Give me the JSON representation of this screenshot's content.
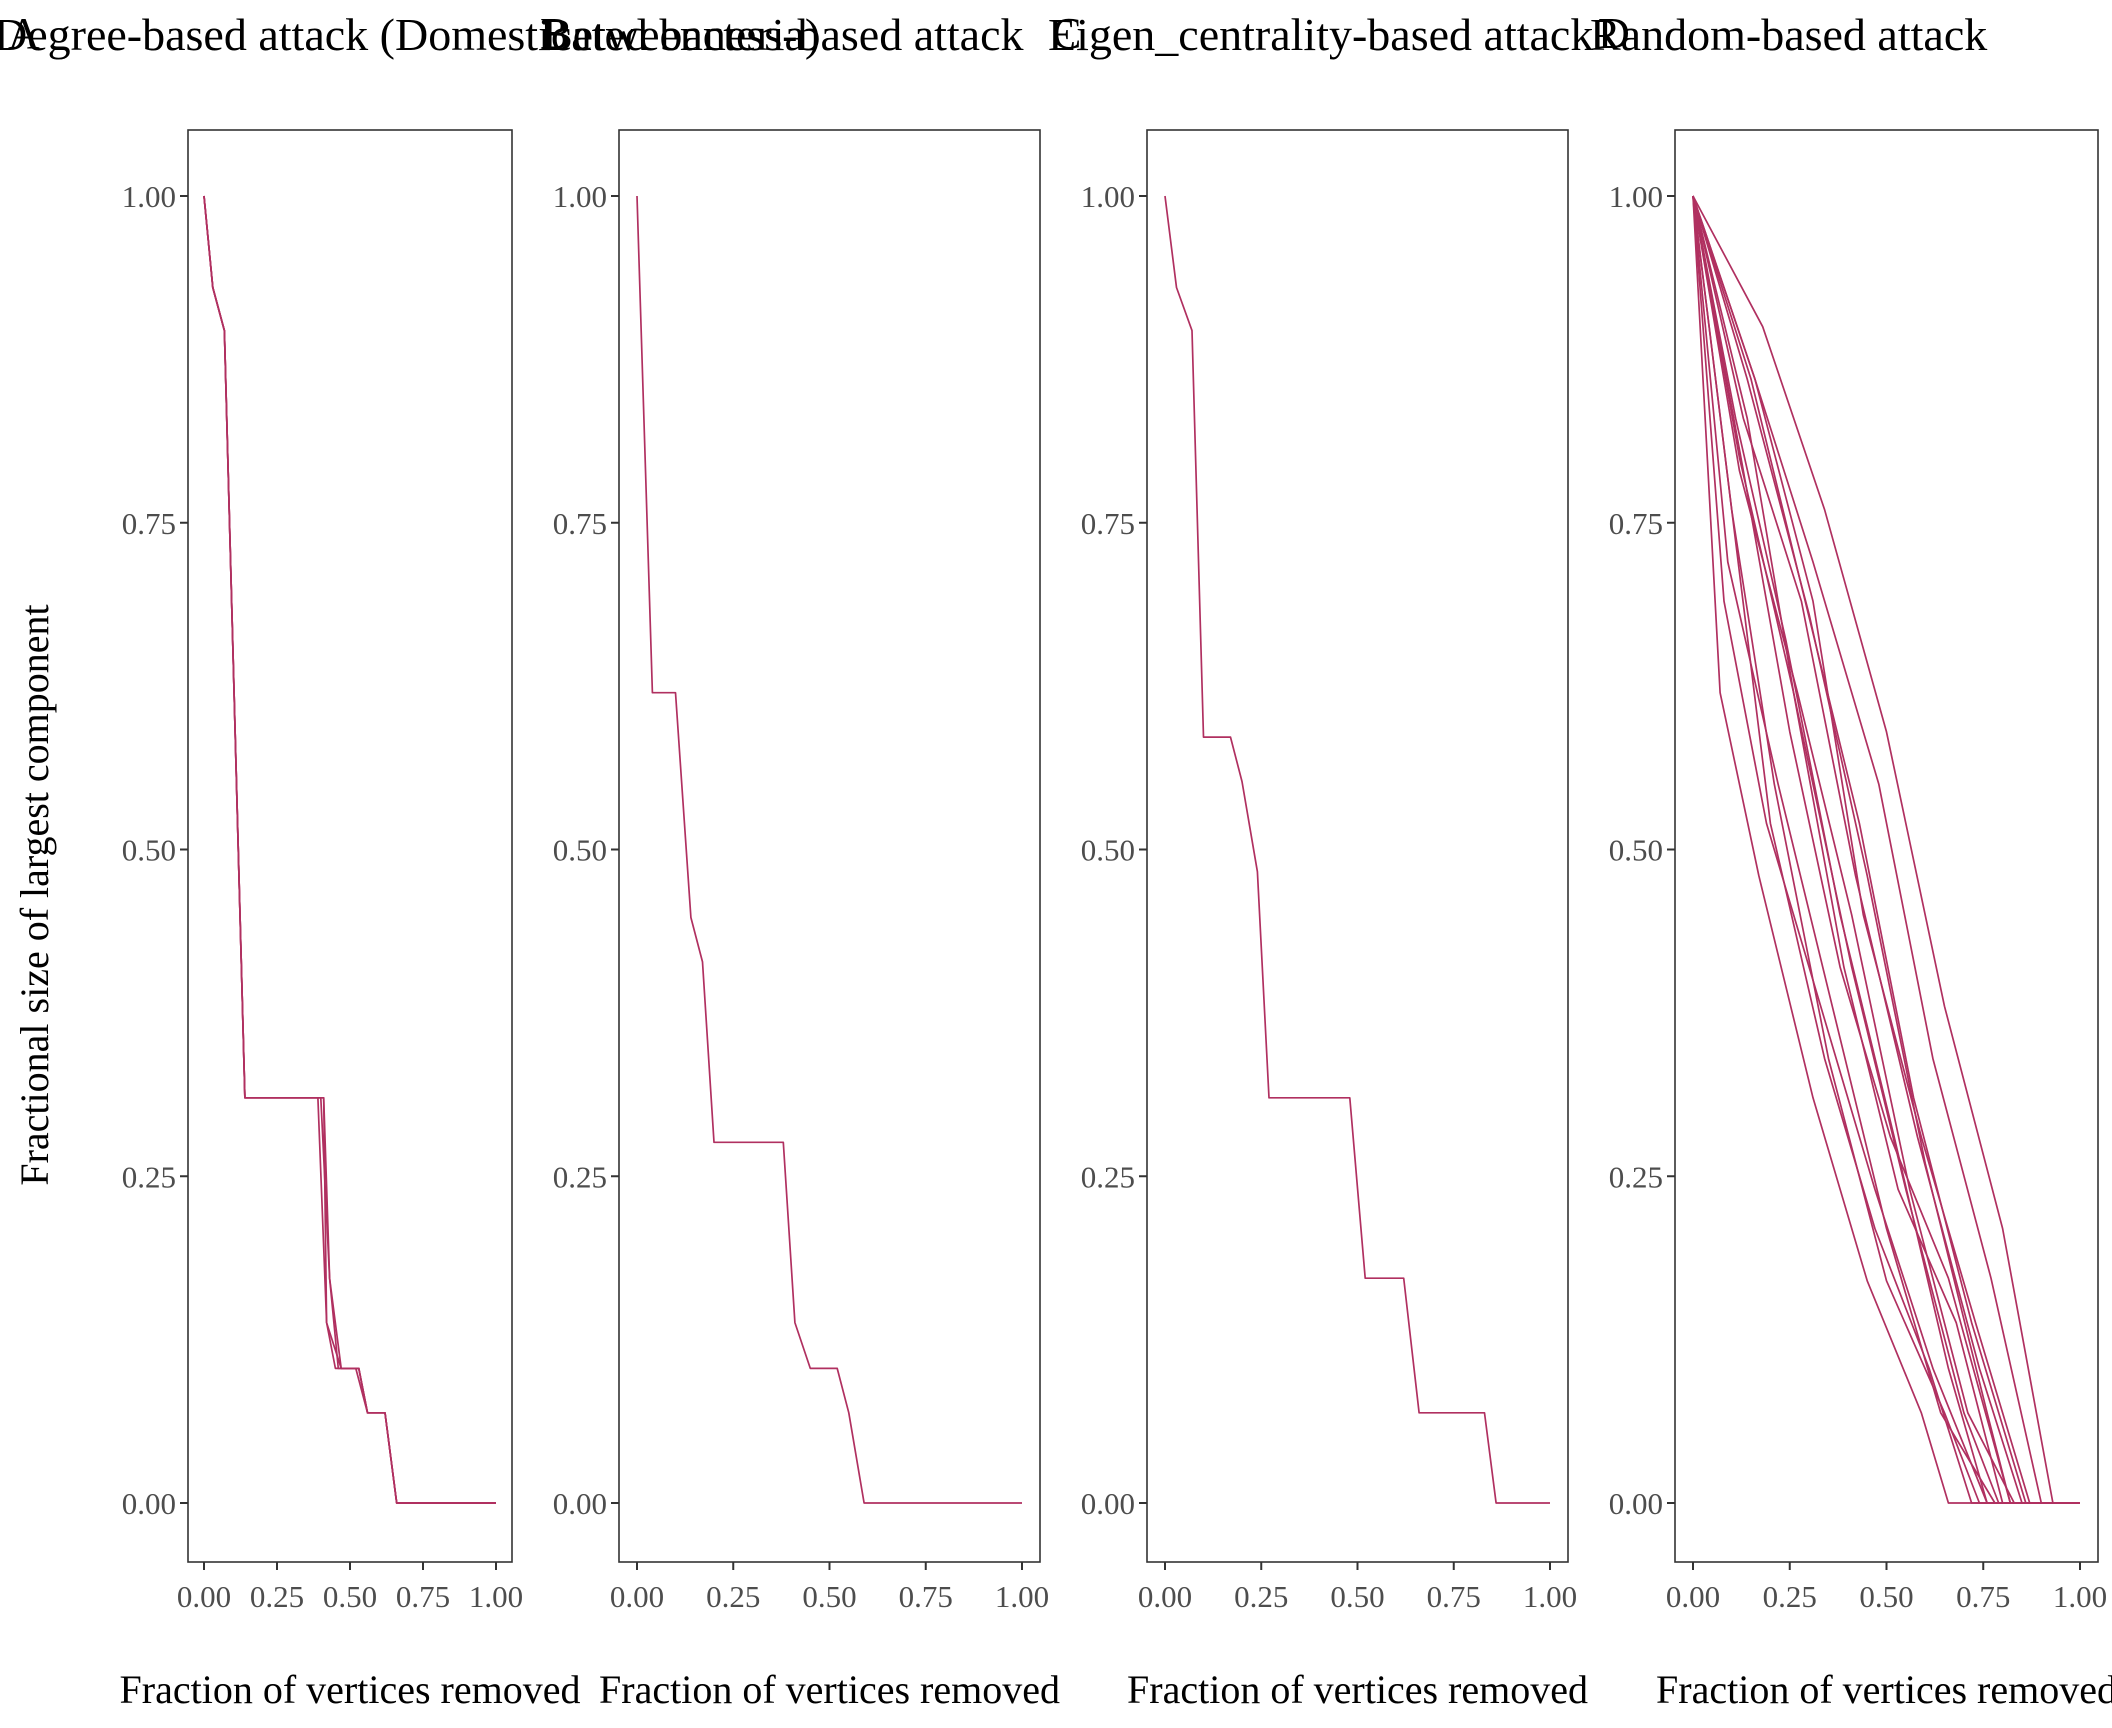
{
  "figure": {
    "y_axis_title": "Fractional size of largest component",
    "line_color": "#b03060"
  },
  "chart_data": [
    {
      "type": "line",
      "tag": "A",
      "title": "Degree-based attack (Domesticated bacteria)",
      "xlabel": "Fraction of vertices removed",
      "ylabel": "Fractional size of largest component",
      "xlim": [
        0,
        1
      ],
      "ylim": [
        0,
        1
      ],
      "xticks": [
        "0.00",
        "0.25",
        "0.50",
        "0.75",
        "1.00"
      ],
      "yticks": [
        "0.00",
        "0.25",
        "0.50",
        "0.75",
        "1.00"
      ],
      "grid": false,
      "series": [
        {
          "x": [
            0,
            0.03,
            0.07,
            0.14,
            0.2,
            0.38,
            0.4,
            0.43,
            0.47,
            0.52,
            0.56,
            0.62,
            0.66,
            1.0
          ],
          "y": [
            1,
            0.93,
            0.897,
            0.31,
            0.31,
            0.31,
            0.31,
            0.172,
            0.103,
            0.103,
            0.069,
            0.069,
            0,
            0
          ]
        },
        {
          "x": [
            0,
            0.03,
            0.07,
            0.14,
            0.2,
            0.39,
            0.42,
            0.45,
            0.49,
            0.53,
            0.56,
            0.62,
            0.66,
            1.0
          ],
          "y": [
            1,
            0.93,
            0.897,
            0.31,
            0.31,
            0.31,
            0.138,
            0.103,
            0.103,
            0.103,
            0.069,
            0.069,
            0,
            0
          ]
        },
        {
          "x": [
            0,
            0.03,
            0.07,
            0.14,
            0.2,
            0.4,
            0.41,
            0.42,
            0.47,
            0.53,
            0.56,
            0.62,
            0.66,
            1.0
          ],
          "y": [
            1,
            0.93,
            0.897,
            0.31,
            0.31,
            0.31,
            0.31,
            0.138,
            0.103,
            0.103,
            0.069,
            0.069,
            0,
            0
          ]
        },
        {
          "x": [
            0,
            0.03,
            0.07,
            0.14,
            0.2,
            0.41,
            0.43,
            0.46,
            0.49,
            0.53,
            0.56,
            0.62,
            0.66,
            1.0
          ],
          "y": [
            1,
            0.93,
            0.897,
            0.31,
            0.31,
            0.31,
            0.172,
            0.103,
            0.103,
            0.103,
            0.069,
            0.069,
            0,
            0
          ]
        }
      ]
    },
    {
      "type": "line",
      "tag": "B",
      "title": "Betweenness-based attack",
      "xlabel": "Fraction of vertices removed",
      "ylabel": "",
      "xlim": [
        0,
        1
      ],
      "ylim": [
        0,
        1
      ],
      "xticks": [
        "0.00",
        "0.25",
        "0.50",
        "0.75",
        "1.00"
      ],
      "yticks": [
        "0.00",
        "0.25",
        "0.50",
        "0.75",
        "1.00"
      ],
      "grid": false,
      "series": [
        {
          "x": [
            0,
            0.04,
            0.1,
            0.14,
            0.17,
            0.2,
            0.27,
            0.38,
            0.41,
            0.45,
            0.52,
            0.55,
            0.59,
            0.7,
            1.0
          ],
          "y": [
            1,
            0.62,
            0.62,
            0.448,
            0.414,
            0.276,
            0.276,
            0.276,
            0.138,
            0.103,
            0.103,
            0.069,
            0,
            0,
            0
          ]
        }
      ]
    },
    {
      "type": "line",
      "tag": "C",
      "title": "Eigen_centrality-based attack",
      "xlabel": "Fraction of vertices removed",
      "ylabel": "",
      "xlim": [
        0,
        1
      ],
      "ylim": [
        0,
        1
      ],
      "xticks": [
        "0.00",
        "0.25",
        "0.50",
        "0.75",
        "1.00"
      ],
      "yticks": [
        "0.00",
        "0.25",
        "0.50",
        "0.75",
        "1.00"
      ],
      "grid": false,
      "series": [
        {
          "x": [
            0,
            0.03,
            0.07,
            0.1,
            0.17,
            0.2,
            0.24,
            0.27,
            0.4,
            0.48,
            0.52,
            0.62,
            0.66,
            0.83,
            0.86,
            1.0
          ],
          "y": [
            1,
            0.93,
            0.897,
            0.586,
            0.586,
            0.552,
            0.483,
            0.31,
            0.31,
            0.31,
            0.172,
            0.172,
            0.069,
            0.069,
            0,
            0
          ]
        }
      ]
    },
    {
      "type": "line",
      "tag": "D",
      "title": "Random-based attack",
      "xlabel": "Fraction of vertices removed",
      "ylabel": "",
      "xlim": [
        0,
        1
      ],
      "ylim": [
        0,
        1
      ],
      "xticks": [
        "0.00",
        "0.25",
        "0.50",
        "0.75",
        "1.00"
      ],
      "yticks": [
        "0.00",
        "0.25",
        "0.50",
        "0.75",
        "1.00"
      ],
      "grid": false,
      "series": [
        {
          "x": [
            0,
            0.14,
            0.3,
            0.45,
            0.6,
            0.76,
            0.82,
            1.0
          ],
          "y": [
            1,
            0.86,
            0.68,
            0.48,
            0.26,
            0.069,
            0,
            0
          ]
        },
        {
          "x": [
            0,
            0.12,
            0.26,
            0.41,
            0.55,
            0.7,
            0.79,
            1.0
          ],
          "y": [
            1,
            0.8,
            0.62,
            0.41,
            0.24,
            0.069,
            0,
            0
          ]
        },
        {
          "x": [
            0,
            0.1,
            0.21,
            0.35,
            0.5,
            0.65,
            0.74,
            1.0
          ],
          "y": [
            1,
            0.76,
            0.55,
            0.34,
            0.17,
            0.069,
            0,
            0
          ]
        },
        {
          "x": [
            0,
            0.07,
            0.17,
            0.31,
            0.45,
            0.59,
            0.66,
            1.0
          ],
          "y": [
            1,
            0.62,
            0.48,
            0.31,
            0.17,
            0.069,
            0,
            0
          ]
        },
        {
          "x": [
            0,
            0.11,
            0.24,
            0.38,
            0.52,
            0.66,
            0.76,
            1.0
          ],
          "y": [
            1,
            0.83,
            0.66,
            0.45,
            0.28,
            0.103,
            0,
            0
          ]
        },
        {
          "x": [
            0,
            0.15,
            0.29,
            0.43,
            0.57,
            0.72,
            0.86,
            1.0
          ],
          "y": [
            1,
            0.86,
            0.69,
            0.52,
            0.31,
            0.138,
            0,
            0
          ]
        },
        {
          "x": [
            0,
            0.16,
            0.31,
            0.48,
            0.62,
            0.77,
            0.9,
            1.0
          ],
          "y": [
            1,
            0.86,
            0.72,
            0.55,
            0.34,
            0.172,
            0,
            0
          ]
        },
        {
          "x": [
            0,
            0.13,
            0.28,
            0.42,
            0.58,
            0.74,
            0.85,
            1.0
          ],
          "y": [
            1,
            0.83,
            0.69,
            0.48,
            0.28,
            0.103,
            0,
            0
          ]
        },
        {
          "x": [
            0,
            0.09,
            0.22,
            0.36,
            0.5,
            0.64,
            0.78,
            1.0
          ],
          "y": [
            1,
            0.72,
            0.55,
            0.38,
            0.21,
            0.069,
            0,
            0
          ]
        },
        {
          "x": [
            0,
            0.12,
            0.27,
            0.41,
            0.56,
            0.71,
            0.83,
            1.0
          ],
          "y": [
            1,
            0.79,
            0.62,
            0.45,
            0.24,
            0.069,
            0,
            0
          ]
        },
        {
          "x": [
            0,
            0.18,
            0.34,
            0.5,
            0.65,
            0.8,
            0.93,
            1.0
          ],
          "y": [
            1,
            0.9,
            0.76,
            0.59,
            0.38,
            0.21,
            0,
            0
          ]
        },
        {
          "x": [
            0,
            0.14,
            0.26,
            0.39,
            0.53,
            0.68,
            0.8,
            1.0
          ],
          "y": [
            1,
            0.83,
            0.62,
            0.41,
            0.24,
            0.138,
            0,
            0
          ]
        },
        {
          "x": [
            0,
            0.1,
            0.2,
            0.34,
            0.47,
            0.61,
            0.72,
            1.0
          ],
          "y": [
            1,
            0.76,
            0.52,
            0.34,
            0.21,
            0.103,
            0,
            0
          ]
        },
        {
          "x": [
            0,
            0.13,
            0.25,
            0.38,
            0.51,
            0.66,
            0.82,
            1.0
          ],
          "y": [
            1,
            0.79,
            0.59,
            0.41,
            0.28,
            0.172,
            0,
            0
          ]
        },
        {
          "x": [
            0,
            0.16,
            0.31,
            0.44,
            0.59,
            0.73,
            0.87,
            1.0
          ],
          "y": [
            1,
            0.86,
            0.69,
            0.45,
            0.28,
            0.138,
            0,
            0
          ]
        },
        {
          "x": [
            0,
            0.08,
            0.19,
            0.33,
            0.47,
            0.62,
            0.76,
            1.0
          ],
          "y": [
            1,
            0.69,
            0.52,
            0.38,
            0.24,
            0.103,
            0,
            0
          ]
        }
      ]
    }
  ]
}
